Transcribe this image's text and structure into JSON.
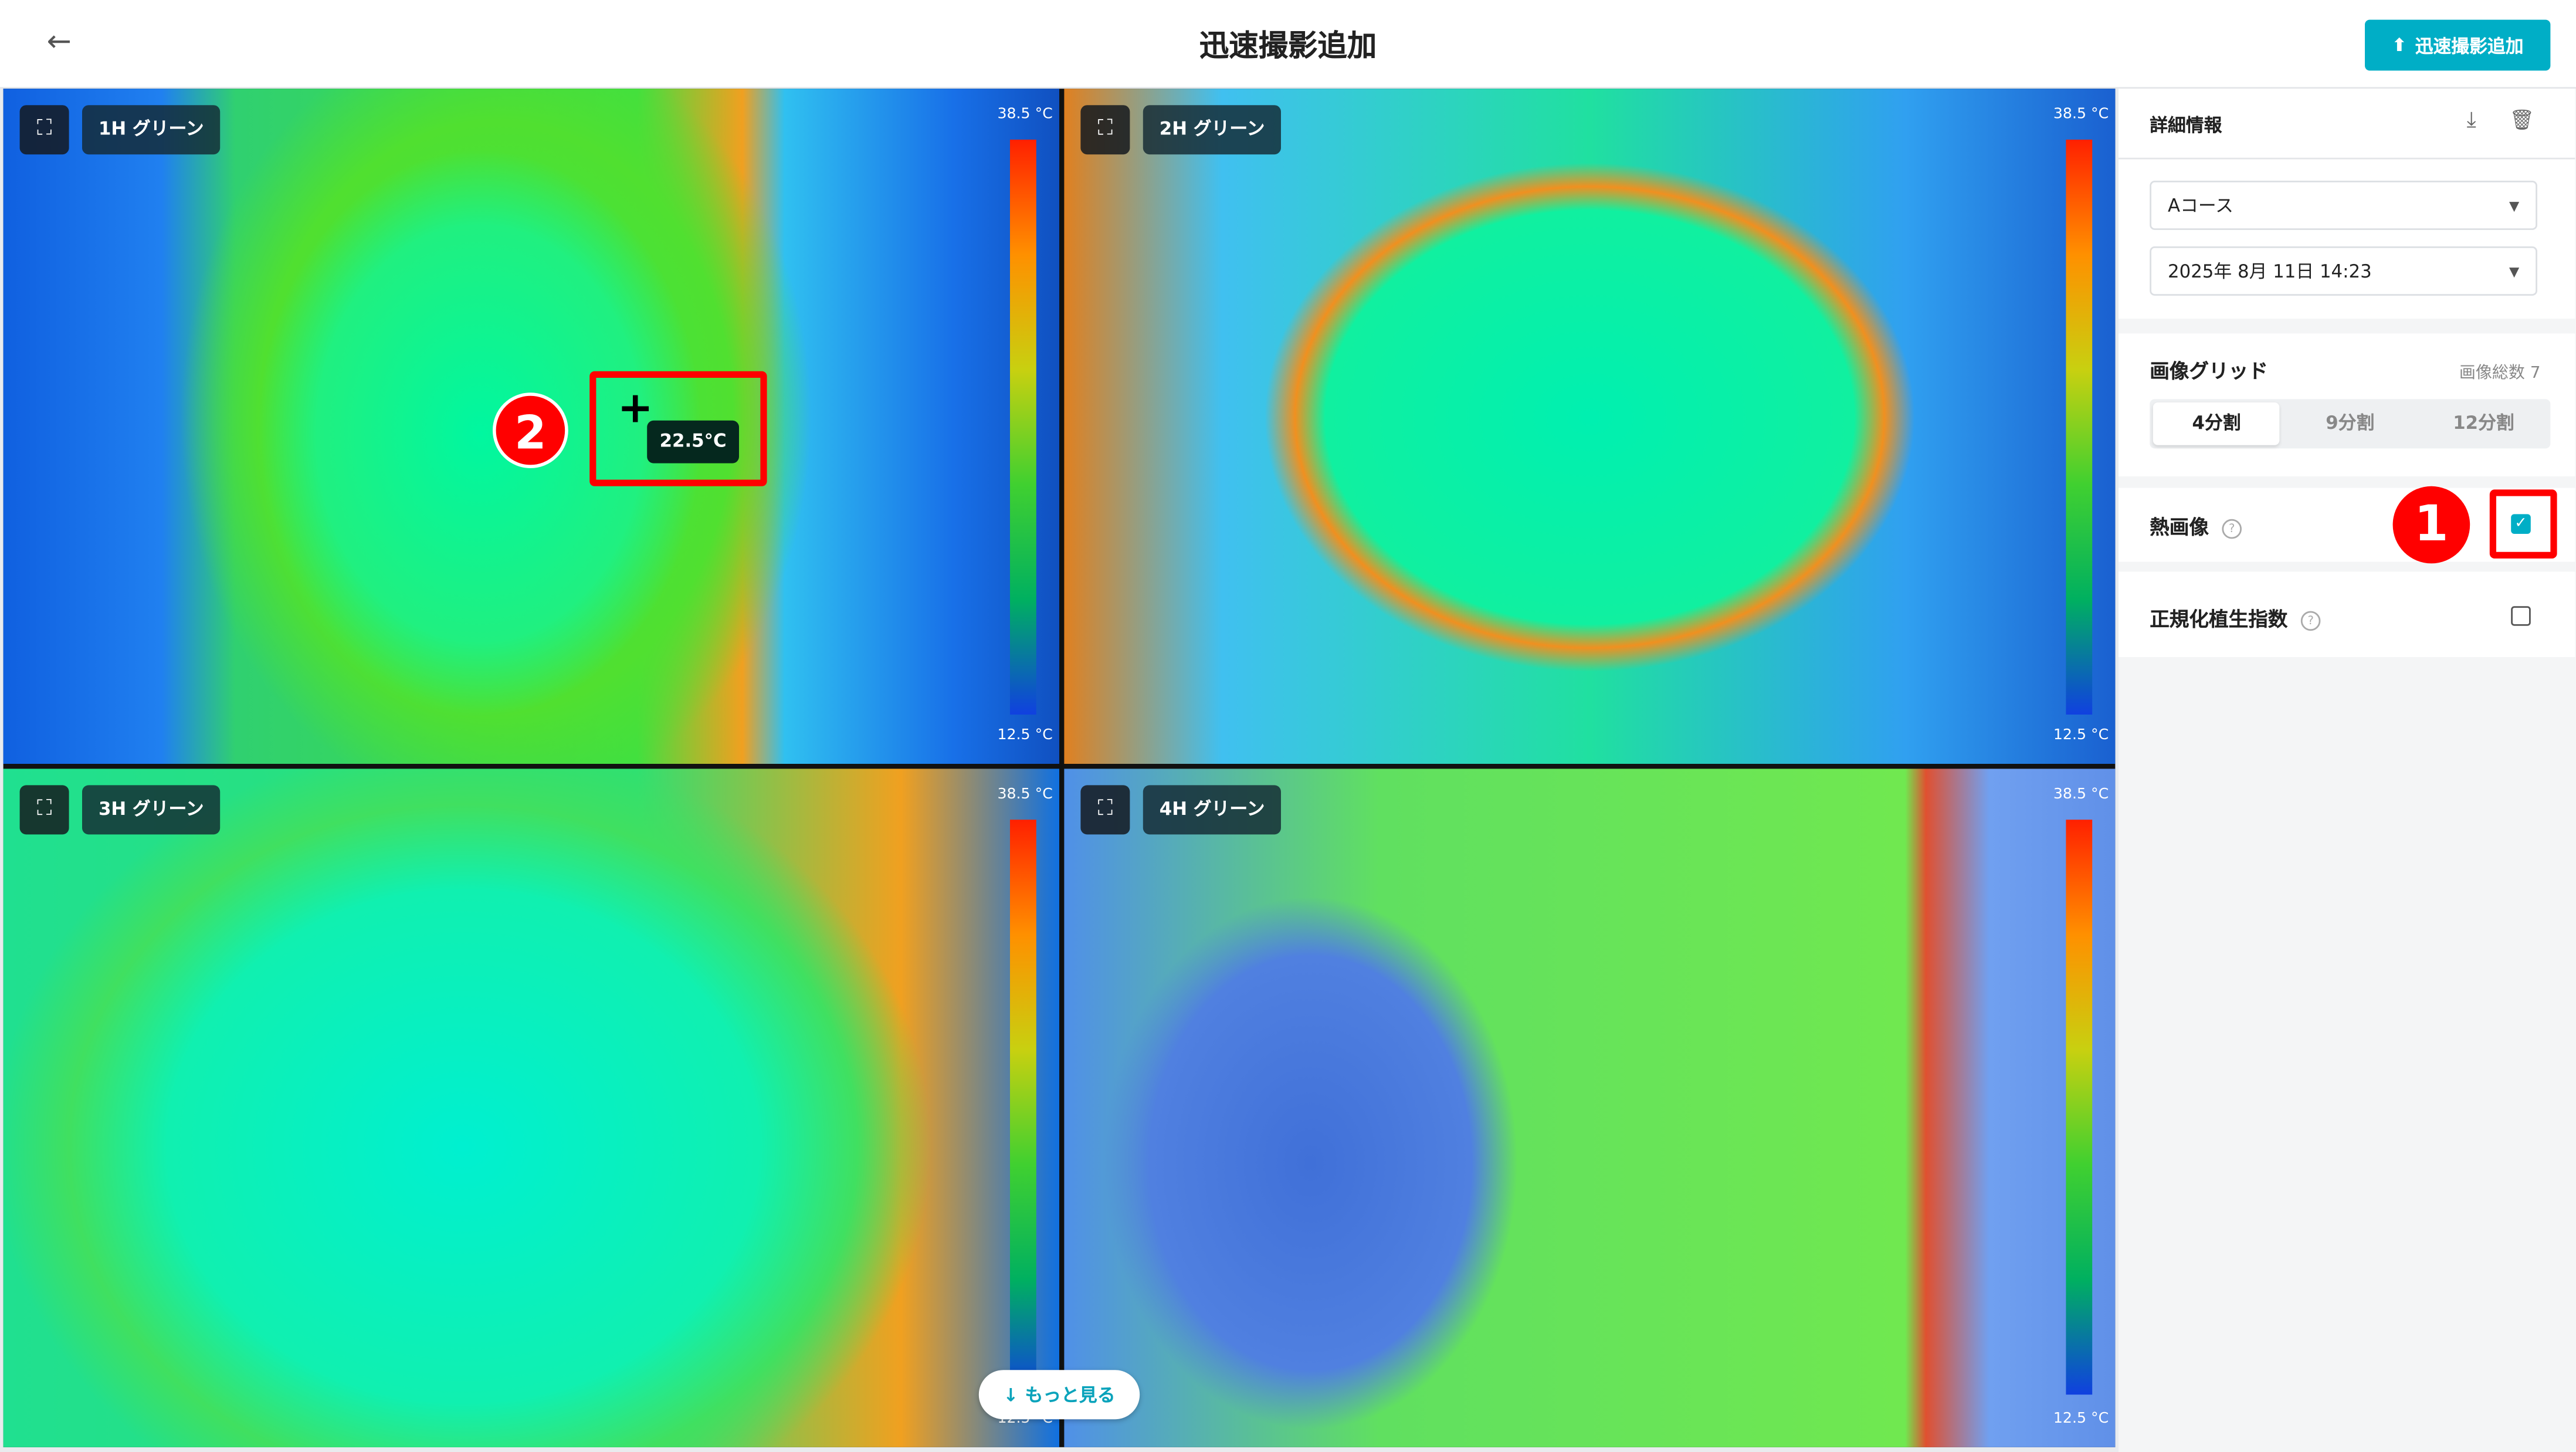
{
  "header": {
    "title": "迅速撮影追加",
    "back_icon": "arrow-left-icon",
    "upload_button": "迅速撮影追加"
  },
  "panels": [
    {
      "label": "1H グリーン",
      "scale_max": "38.5 °C",
      "scale_min": "12.5 °C"
    },
    {
      "label": "2H グリーン",
      "scale_max": "38.5 °C",
      "scale_min": "12.5 °C"
    },
    {
      "label": "3H グリーン",
      "scale_max": "38.5 °C",
      "scale_min": "12.5 °C"
    },
    {
      "label": "4H グリーン",
      "scale_max": "38.5 °C",
      "scale_min": "12.5 °C"
    }
  ],
  "cursor": {
    "temperature": "22.5°C"
  },
  "more_button": "もっと見る",
  "sidebar": {
    "details_title": "詳細情報",
    "course_select": "Aコース",
    "date_select": "2025年 8月 11日 14:23",
    "grid_title": "画像グリッド",
    "image_count": "画像総数 7",
    "grid_options": [
      "4分割",
      "9分割",
      "12分割"
    ],
    "grid_selected": "4分割",
    "thermal_label": "熱画像",
    "thermal_checked": true,
    "ndvi_label": "正規化植生指数",
    "ndvi_checked": false
  },
  "annotations": {
    "marker1": "1",
    "marker2": "2"
  },
  "colors": {
    "accent": "#00aec6",
    "annotation": "#ff0000"
  }
}
